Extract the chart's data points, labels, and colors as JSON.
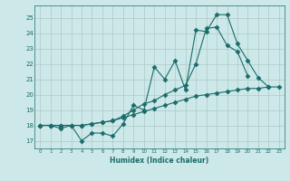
{
  "xlabel": "Humidex (Indice chaleur)",
  "bg_color": "#cce8e8",
  "grid_color": "#b0c8c8",
  "line_color": "#1a6b6b",
  "xlim": [
    -0.5,
    23.5
  ],
  "ylim": [
    16.5,
    25.8
  ],
  "yticks": [
    17,
    18,
    19,
    20,
    21,
    22,
    23,
    24,
    25
  ],
  "xticks": [
    0,
    1,
    2,
    3,
    4,
    5,
    6,
    7,
    8,
    9,
    10,
    11,
    12,
    13,
    14,
    15,
    16,
    17,
    18,
    19,
    20,
    21,
    22,
    23
  ],
  "line1_x": [
    0,
    1,
    2,
    3,
    4,
    5,
    6,
    7,
    8,
    9,
    10,
    11,
    12,
    13,
    14,
    15,
    16,
    17,
    18,
    19,
    20,
    21,
    22
  ],
  "line1_y": [
    18.0,
    18.0,
    17.8,
    18.0,
    17.0,
    17.5,
    17.5,
    17.3,
    18.1,
    19.3,
    19.0,
    21.8,
    21.0,
    22.2,
    20.3,
    24.2,
    24.1,
    25.2,
    25.2,
    23.3,
    22.2,
    21.1,
    20.5
  ],
  "line2_x": [
    0,
    1,
    2,
    3,
    4,
    5,
    6,
    7,
    8,
    9,
    10,
    11,
    12,
    13,
    14,
    15,
    16,
    17,
    18,
    19,
    20,
    21,
    22,
    23
  ],
  "line2_y": [
    18.0,
    18.0,
    18.0,
    18.0,
    18.0,
    18.1,
    18.2,
    18.3,
    18.5,
    18.7,
    18.9,
    19.1,
    19.3,
    19.5,
    19.7,
    19.9,
    20.0,
    20.1,
    20.2,
    20.3,
    20.4,
    20.4,
    20.5,
    20.5
  ],
  "line3_x": [
    0,
    1,
    2,
    3,
    4,
    5,
    6,
    7,
    8,
    9,
    10,
    11,
    12,
    13,
    14,
    15,
    16,
    17,
    18,
    19,
    20
  ],
  "line3_y": [
    18.0,
    18.0,
    18.0,
    18.0,
    18.0,
    18.1,
    18.2,
    18.3,
    18.6,
    19.0,
    19.4,
    19.6,
    20.0,
    20.3,
    20.6,
    22.0,
    24.3,
    24.4,
    23.2,
    22.8,
    21.2
  ]
}
